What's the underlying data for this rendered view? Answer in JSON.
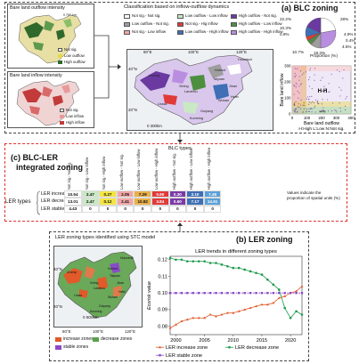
{
  "panel_a": {
    "title": "(a) BLC zoning",
    "outflow_map_title": "Bare land outflow intensity",
    "inflow_map_title": "Bare land inflow intensity",
    "km_label": "0 750 km",
    "legend_outflow": [
      "Not sig.",
      "Low outflow",
      "High outflow"
    ],
    "legend_inflow": [
      "Not sig.",
      "Low inflow",
      "High inflow"
    ],
    "classification_title": "Classification based on inflow-outflow dynamics",
    "class_legend": [
      {
        "label": "Not sig.- Not sig.",
        "color": "#ffffff"
      },
      {
        "label": "Low outflow - Not sig.",
        "color": "#9e9e9e"
      },
      {
        "label": "Not sig.- Low inflow",
        "color": "#f2a6a6"
      },
      {
        "label": "Low outflow - Low inflow",
        "color": "#c9e8c4"
      },
      {
        "label": "Not sig.- Hig inflow",
        "color": "#e03a3a"
      },
      {
        "label": "Low outflow - High inflow",
        "color": "#3f6fb5"
      },
      {
        "label": "High outflow - Not sig.",
        "color": "#6a3aa0"
      },
      {
        "label": "High outflow - Low inflow",
        "color": "#4d8f3f"
      },
      {
        "label": "High outflow - High inflow",
        "color": "#b98de0"
      }
    ],
    "map_lon_labels": [
      "80°E",
      "100°E",
      "120°E"
    ],
    "map_lat_labels": [
      "40°N",
      "20°N"
    ],
    "scale_label": "0  300km",
    "cities": [
      "Urumqi",
      "Lhasa",
      "Xining",
      "Lanzhou",
      "Hohhot",
      "Taiyuan",
      "Hulunbuir",
      "Jinan",
      "Hefei",
      "Wuhan",
      "Guiyang",
      "Kunming"
    ]
  },
  "chart_data": [
    {
      "type": "pie",
      "labels": [
        "22.2%",
        "28%",
        "10.3%",
        "0.9%",
        "4.9%",
        "0.4%",
        "4.5%",
        "10.7%",
        "18.3%"
      ],
      "values": [
        22.2,
        28,
        10.3,
        0.9,
        4.9,
        0.4,
        4.5,
        10.7,
        18.3
      ],
      "colors": [
        "#ffffff",
        "#b98de0",
        "#9e9e9e",
        "#f2a6a6",
        "#4d8f3f",
        "#c9e8c4",
        "#e03a3a",
        "#3f6fb5",
        "#6a3aa0"
      ],
      "caption": "Proportion (%)"
    },
    {
      "type": "scatter",
      "xlabel": "Bare land outflow",
      "ylabel": "Bare land inflow",
      "xticks": [
        "0",
        "100",
        "200",
        "300",
        "400"
      ],
      "yticks": [
        "0",
        "100",
        "200",
        "300"
      ],
      "xlim": [
        0,
        400
      ],
      "ylim": [
        0,
        300
      ],
      "region_labels": [
        "H-H",
        "H-N"
      ],
      "footnote": "H:High  L:Low  N:Not sig."
    },
    {
      "type": "line",
      "title": "LER trends in different zoning types",
      "ylabel": "Ecorisk value",
      "x": [
        1999,
        2000,
        2001,
        2002,
        2003,
        2004,
        2005,
        2006,
        2007,
        2008,
        2009,
        2010,
        2011,
        2012,
        2013,
        2014,
        2015,
        2016,
        2017,
        2018,
        2019,
        2020,
        2021,
        2022
      ],
      "xticks": [
        2000,
        2005,
        2010,
        2015,
        2020
      ],
      "ylim": [
        0.075,
        0.122
      ],
      "yticks": [
        "0.08",
        "0.09",
        "0.10",
        "0.11",
        "0.12"
      ],
      "series": [
        {
          "name": "LER increase zone",
          "color": "#e05a2a",
          "marker": "triangle",
          "values": [
            0.079,
            0.081,
            0.083,
            0.084,
            0.085,
            0.085,
            0.085,
            0.087,
            0.086,
            0.087,
            0.088,
            0.088,
            0.089,
            0.09,
            0.091,
            0.092,
            0.093,
            0.093,
            0.094,
            0.097,
            0.098,
            0.1,
            0.101,
            0.104
          ]
        },
        {
          "name": "LER decrease zone",
          "color": "#1a9a4a",
          "marker": "circle",
          "values": [
            0.121,
            0.12,
            0.12,
            0.119,
            0.119,
            0.119,
            0.119,
            0.118,
            0.118,
            0.117,
            0.116,
            0.115,
            0.115,
            0.114,
            0.113,
            0.112,
            0.111,
            0.108,
            0.105,
            0.102,
            0.091,
            0.085,
            0.089,
            0.087
          ]
        },
        {
          "name": "LER stable zone",
          "color": "#8a4ac8",
          "marker": "square",
          "values": [
            0.1,
            0.1,
            0.1,
            0.1,
            0.1,
            0.1,
            0.1,
            0.1,
            0.1,
            0.1,
            0.1,
            0.1,
            0.1,
            0.1,
            0.1,
            0.1,
            0.1,
            0.1,
            0.1,
            0.1,
            0.1,
            0.1,
            0.1,
            0.1
          ]
        }
      ]
    }
  ],
  "panel_c": {
    "title_line1": "(c) BLC-LER",
    "title_line2": "integrated zoning",
    "blc_types_label": "BLC types",
    "ler_types_label": "LER types",
    "columns": [
      "Not sig.- Not sig.",
      "Not sig.- Low inflow",
      "Not sig.- High inflow",
      "Low outflow - Not sig.",
      "Low outflow - Low inflow",
      "Low outflow - High inflow",
      "High outflow - Not sig.",
      "High outflow - Low inflow",
      "High outflow - High inflow"
    ],
    "rows": [
      {
        "label": "LER increase",
        "values": [
          "10.54",
          "2.47",
          "0.27",
          "2.05",
          "7.29",
          "0.90",
          "0.30",
          "3.10",
          "7.48"
        ]
      },
      {
        "label": "LER decrease",
        "values": [
          "13.01",
          "2.47",
          "0.12",
          "2.41",
          "10.82",
          "3.84",
          "0.60",
          "7.17",
          "14.51"
        ]
      },
      {
        "label": "LER stable",
        "values": [
          "4.43",
          "0",
          "0",
          "0",
          "0",
          "0",
          "0",
          "0",
          "0"
        ]
      }
    ],
    "col_colors": [
      "#ffffff",
      "#c9e8c4",
      "#f5e642",
      "#f2a6a6",
      "#e9b14a",
      "#e03a3a",
      "#7a3aa6",
      "#3f6fb5",
      "#5aa0d8"
    ],
    "note": "Values indicate the proportion of spatial units (%)"
  },
  "panel_b": {
    "title": "(b) LER zoning",
    "map_title": "LER zoning types identified using STC model",
    "map_lon_labels": [
      "80°E",
      "100°E",
      "120°E"
    ],
    "map_lat_labels": [
      "40°N",
      "20°N"
    ],
    "scale_label": "0  500km",
    "legend": [
      {
        "label": "increase zones",
        "color": "#e05a2a"
      },
      {
        "label": "decrease zones",
        "color": "#5aa04a"
      },
      {
        "label": "stable zones",
        "color": "#8a4ac8"
      }
    ]
  }
}
